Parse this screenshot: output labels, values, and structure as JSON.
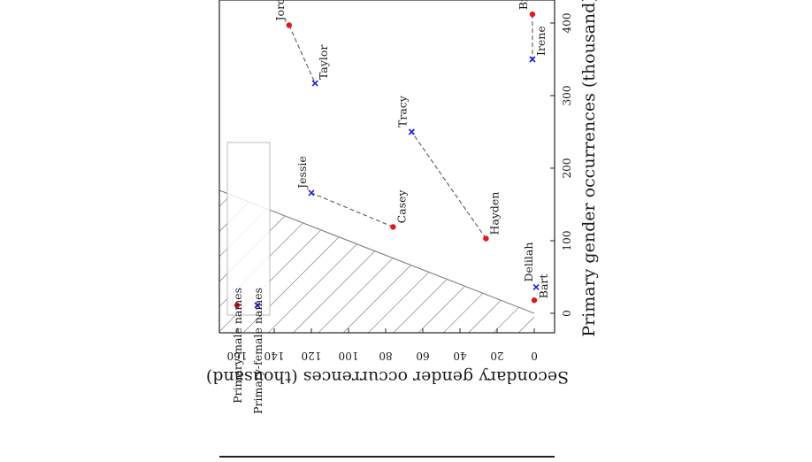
{
  "chart_data": {
    "type": "scatter",
    "xlabel": "Primary gender occurrences (thousand)",
    "ylabel": "Secondary gender occurrences (thousand)",
    "xlim": [
      -20,
      420
    ],
    "ylim": [
      -10,
      168
    ],
    "x_ticks": [
      0,
      100,
      200,
      300,
      400
    ],
    "y_ticks": [
      0,
      20,
      40,
      60,
      80,
      100,
      120,
      140,
      160
    ],
    "x_tick_labels": [
      "0",
      "100",
      "200",
      "300",
      "400"
    ],
    "y_tick_labels": [
      "0",
      "20",
      "40",
      "60",
      "80",
      "100",
      "120",
      "140",
      "160"
    ],
    "orientation": "rotated 90 degrees clockwise",
    "legend_placement": "top-left",
    "grid": false,
    "colors": {
      "male": "#e8141c",
      "female": "#1a1aff",
      "connector": "#666666",
      "hatch": "#707070"
    },
    "series": [
      {
        "name": "Primary-male names",
        "marker": "circle",
        "points": [
          {
            "label": "Jordan",
            "x": 397,
            "y": 132
          },
          {
            "label": "Casey",
            "x": 119,
            "y": 76
          },
          {
            "label": "Hayden",
            "x": 103,
            "y": 26
          },
          {
            "label": "Bruce",
            "x": 412,
            "y": 1
          },
          {
            "label": "Bart",
            "x": 18,
            "y": 0
          }
        ]
      },
      {
        "name": "Primary-female names",
        "marker": "x",
        "points": [
          {
            "label": "Taylor",
            "x": 317,
            "y": 118
          },
          {
            "label": "Jessie",
            "x": 166,
            "y": 120
          },
          {
            "label": "Tracy",
            "x": 250,
            "y": 66
          },
          {
            "label": "Irene",
            "x": 350,
            "y": 1
          },
          {
            "label": "Delilah",
            "x": 36,
            "y": -1
          }
        ]
      }
    ],
    "pairs": [
      [
        "Jordan",
        "Taylor"
      ],
      [
        "Casey",
        "Jessie"
      ],
      [
        "Hayden",
        "Tracy"
      ],
      [
        "Bruce",
        "Irene"
      ]
    ],
    "hatched_region": "y > x"
  }
}
